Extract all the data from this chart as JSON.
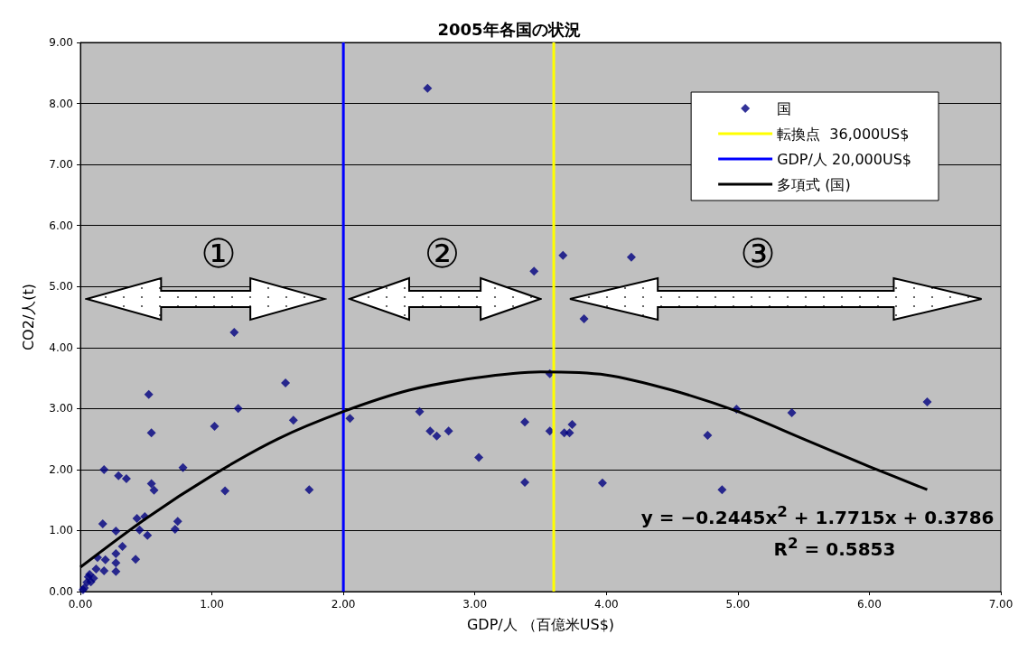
{
  "chart_data": {
    "type": "scatter",
    "title": "2005年各国の状況",
    "xlabel": "GDP/人 （百億米US$)",
    "ylabel": "CO2/人(t)",
    "xlim": [
      0,
      7
    ],
    "ylim": [
      0,
      9
    ],
    "xticks": [
      {
        "value": 0,
        "label": "0.00"
      },
      {
        "value": 1,
        "label": "1.00"
      },
      {
        "value": 2,
        "label": "2.00"
      },
      {
        "value": 3,
        "label": "3.00"
      },
      {
        "value": 4,
        "label": "4.00"
      },
      {
        "value": 5,
        "label": "5.00"
      },
      {
        "value": 6,
        "label": "6.00"
      },
      {
        "value": 7,
        "label": "7.00"
      }
    ],
    "yticks": [
      {
        "value": 0,
        "label": "0.00"
      },
      {
        "value": 1,
        "label": "1.00"
      },
      {
        "value": 2,
        "label": "2.00"
      },
      {
        "value": 3,
        "label": "3.00"
      },
      {
        "value": 4,
        "label": "4.00"
      },
      {
        "value": 5,
        "label": "5.00"
      },
      {
        "value": 6,
        "label": "6.00"
      },
      {
        "value": 7,
        "label": "7.00"
      },
      {
        "value": 8,
        "label": "8.00"
      },
      {
        "value": 9,
        "label": "9.00"
      }
    ],
    "grid": "y",
    "legend": "top right",
    "marker": "diamond",
    "series": [
      {
        "name": "国",
        "color": "#000080",
        "x": [
          2.64,
          1.17,
          1.56,
          0.52,
          1.2,
          1.62,
          1.02,
          0.54,
          2.05,
          1.74,
          1.1,
          0.78,
          0.35,
          0.29,
          0.18,
          0.54,
          0.56,
          0.17,
          0.74,
          0.72,
          0.43,
          0.49,
          0.27,
          0.45,
          0.51,
          0.32,
          0.42,
          0.27,
          0.27,
          0.27,
          0.19,
          0.13,
          0.12,
          0.18,
          0.07,
          0.1,
          0.05,
          0.02,
          0.03,
          0.08,
          0.06,
          2.58,
          2.66,
          2.71,
          2.8,
          3.03,
          3.38,
          3.38,
          3.45,
          3.57,
          3.57,
          3.67,
          3.83,
          3.68,
          3.72,
          3.74,
          3.97,
          4.19,
          4.77,
          4.99,
          4.88,
          5.41,
          6.44
        ],
        "values": [
          8.25,
          4.25,
          3.42,
          3.23,
          3.0,
          2.81,
          2.71,
          2.6,
          2.84,
          1.67,
          1.65,
          2.03,
          1.85,
          1.9,
          2.0,
          1.77,
          1.66,
          1.11,
          1.15,
          1.02,
          1.2,
          1.23,
          0.99,
          1.01,
          0.92,
          0.74,
          0.53,
          0.62,
          0.47,
          0.33,
          0.52,
          0.56,
          0.37,
          0.34,
          0.28,
          0.22,
          0.15,
          0.03,
          0.06,
          0.16,
          0.24,
          2.95,
          2.63,
          2.55,
          2.63,
          2.2,
          2.78,
          1.79,
          5.25,
          3.57,
          2.63,
          5.51,
          4.47,
          2.6,
          2.6,
          2.74,
          1.78,
          5.48,
          2.56,
          2.99,
          1.67,
          2.93,
          3.11
        ]
      },
      {
        "name": "転換点  36,000US$",
        "type": "line",
        "color": "#ffff00",
        "marker": "none",
        "line_style": "solid",
        "x": [
          3.6,
          3.6
        ],
        "values": [
          0,
          9
        ]
      },
      {
        "name": "GDP/人 20,000US$",
        "type": "line",
        "color": "#0000ff",
        "marker": "none",
        "line_style": "solid",
        "x": [
          2,
          2
        ],
        "values": [
          0,
          9
        ]
      },
      {
        "name": "多項式 (国)",
        "type": "line",
        "color": "#000000",
        "marker": "none",
        "line_style": "solid",
        "x": [
          0,
          0.5,
          1,
          1.5,
          2,
          2.5,
          3,
          3.5,
          4,
          4.5,
          5,
          5.5,
          6,
          6.44
        ],
        "values": [
          0.4,
          1.2,
          1.9,
          2.5,
          2.95,
          3.3,
          3.5,
          3.6,
          3.55,
          3.3,
          2.95,
          2.5,
          2.05,
          1.67
        ]
      }
    ],
    "annotations": [
      "①",
      "②",
      "③",
      "y = −0.2445x$^{2}$ + 1.7715x + 0.3786",
      "R$^{2}$ = 0.5853"
    ]
  }
}
